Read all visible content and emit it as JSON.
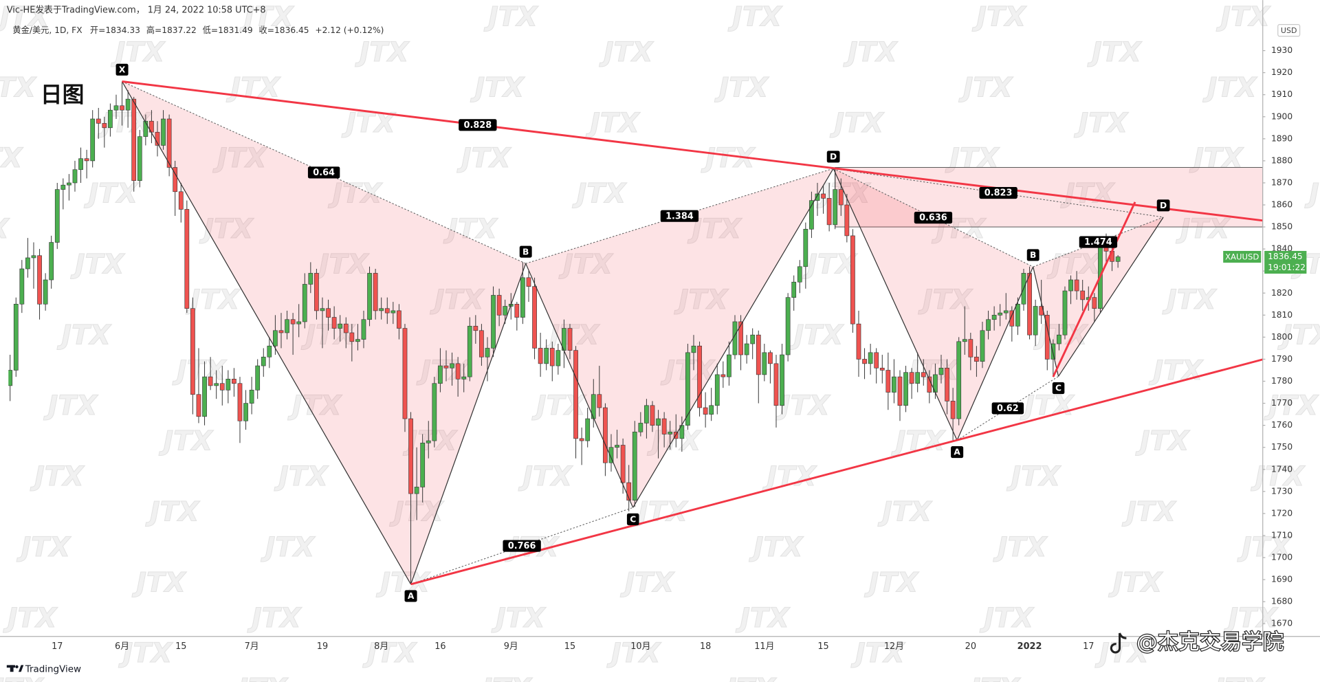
{
  "header": {
    "author_line": "Vic-HE发表于TradingView.com， 1月 24, 2022 10:58 UTC+8",
    "symbol": "黄金/美元, 1D, FX",
    "ohlc_labels": [
      "开=",
      "高=",
      "低=",
      "收="
    ],
    "change": "+2.12 (+0.12%)"
  },
  "chart_data": {
    "type": "candlestick",
    "title": "日图",
    "currency": "USD",
    "watermark": "JTX",
    "up_color": "#4caf50",
    "down_color": "#ef5350",
    "line_color": "#f23645",
    "pattern_color": "#f23645",
    "last_price": {
      "symbol": "XAUUSD",
      "countdown": "19:01:22",
      "color": "#4caf50"
    },
    "ylim": [
      1664.2,
      1943
    ],
    "yticks": [
      1670,
      1680,
      1690,
      1700,
      1710,
      1720,
      1730,
      1740,
      1750,
      1760,
      1770,
      1780,
      1790,
      1800,
      1810,
      1820,
      1830,
      1840,
      1850,
      1860,
      1870,
      1880,
      1890,
      1900,
      1910,
      1920,
      1930
    ],
    "categories": [
      null,
      null,
      null,
      null,
      null,
      null,
      null,
      null,
      "17",
      null,
      null,
      null,
      null,
      null,
      null,
      null,
      null,
      null,
      null,
      "6月",
      null,
      null,
      null,
      null,
      null,
      null,
      null,
      null,
      null,
      "15",
      null,
      null,
      null,
      null,
      null,
      null,
      null,
      null,
      null,
      null,
      null,
      "7月",
      null,
      null,
      null,
      null,
      null,
      null,
      null,
      null,
      null,
      null,
      null,
      "19",
      null,
      null,
      null,
      null,
      null,
      null,
      null,
      null,
      null,
      "8月",
      null,
      null,
      null,
      null,
      null,
      null,
      null,
      null,
      null,
      "16",
      null,
      null,
      null,
      null,
      null,
      null,
      null,
      null,
      null,
      null,
      null,
      "9月",
      null,
      null,
      null,
      null,
      null,
      null,
      null,
      null,
      null,
      "15",
      null,
      null,
      null,
      null,
      null,
      null,
      null,
      null,
      null,
      null,
      null,
      "10月",
      null,
      null,
      null,
      null,
      null,
      null,
      null,
      null,
      null,
      null,
      "18",
      null,
      null,
      null,
      null,
      null,
      null,
      null,
      null,
      null,
      "11月",
      null,
      null,
      null,
      null,
      null,
      null,
      null,
      null,
      null,
      "15",
      null,
      null,
      null,
      null,
      null,
      null,
      null,
      null,
      null,
      null,
      null,
      "12月",
      null,
      null,
      null,
      null,
      null,
      null,
      null,
      null,
      null,
      null,
      null,
      null,
      "20",
      null,
      null,
      null,
      null,
      null,
      null,
      null,
      null,
      null,
      "2022",
      null,
      null,
      null,
      null,
      null,
      null,
      null,
      null,
      null,
      "17",
      null,
      null,
      null,
      null,
      null
    ],
    "candles": [
      [
        1778,
        1792,
        1771,
        1785
      ],
      [
        1785,
        1818,
        1782,
        1815
      ],
      [
        1815,
        1835,
        1811,
        1831
      ],
      [
        1831,
        1845,
        1827,
        1836
      ],
      [
        1836,
        1843,
        1822,
        1837
      ],
      [
        1837,
        1840,
        1808,
        1815
      ],
      [
        1815,
        1829,
        1812,
        1826
      ],
      [
        1826,
        1846,
        1822,
        1843
      ],
      [
        1843,
        1870,
        1840,
        1867
      ],
      [
        1867,
        1872,
        1858,
        1869
      ],
      [
        1869,
        1874,
        1862,
        1870
      ],
      [
        1870,
        1880,
        1866,
        1876
      ],
      [
        1876,
        1886,
        1870,
        1881
      ],
      [
        1881,
        1885,
        1872,
        1880
      ],
      [
        1880,
        1903,
        1877,
        1899
      ],
      [
        1899,
        1904,
        1890,
        1897
      ],
      [
        1897,
        1900,
        1886,
        1895
      ],
      [
        1895,
        1906,
        1891,
        1903
      ],
      [
        1903,
        1910,
        1899,
        1905
      ],
      [
        1905,
        1916,
        1896,
        1903
      ],
      [
        1903,
        1912,
        1895,
        1908
      ],
      [
        1908,
        1909,
        1866,
        1871
      ],
      [
        1871,
        1894,
        1868,
        1891
      ],
      [
        1891,
        1901,
        1887,
        1898
      ],
      [
        1898,
        1903,
        1888,
        1893
      ],
      [
        1893,
        1898,
        1882,
        1887
      ],
      [
        1887,
        1903,
        1885,
        1899
      ],
      [
        1899,
        1901,
        1873,
        1877
      ],
      [
        1877,
        1880,
        1855,
        1866
      ],
      [
        1866,
        1870,
        1852,
        1858
      ],
      [
        1858,
        1862,
        1811,
        1813
      ],
      [
        1813,
        1818,
        1765,
        1774
      ],
      [
        1774,
        1795,
        1761,
        1764
      ],
      [
        1764,
        1789,
        1760,
        1782
      ],
      [
        1782,
        1791,
        1776,
        1778
      ],
      [
        1778,
        1785,
        1772,
        1779
      ],
      [
        1779,
        1787,
        1769,
        1776
      ],
      [
        1776,
        1785,
        1770,
        1781
      ],
      [
        1781,
        1786,
        1773,
        1779
      ],
      [
        1779,
        1782,
        1752,
        1762
      ],
      [
        1762,
        1776,
        1758,
        1770
      ],
      [
        1770,
        1782,
        1765,
        1776
      ],
      [
        1776,
        1790,
        1772,
        1787
      ],
      [
        1787,
        1795,
        1782,
        1791
      ],
      [
        1791,
        1800,
        1786,
        1796
      ],
      [
        1796,
        1810,
        1792,
        1803
      ],
      [
        1803,
        1811,
        1795,
        1802
      ],
      [
        1802,
        1812,
        1799,
        1808
      ],
      [
        1808,
        1811,
        1792,
        1806
      ],
      [
        1806,
        1815,
        1800,
        1807
      ],
      [
        1807,
        1829,
        1804,
        1824
      ],
      [
        1824,
        1834,
        1820,
        1829
      ],
      [
        1829,
        1831,
        1808,
        1812
      ],
      [
        1812,
        1818,
        1795,
        1813
      ],
      [
        1813,
        1817,
        1803,
        1809
      ],
      [
        1809,
        1814,
        1799,
        1804
      ],
      [
        1804,
        1810,
        1798,
        1806
      ],
      [
        1806,
        1809,
        1795,
        1802
      ],
      [
        1802,
        1806,
        1789,
        1798
      ],
      [
        1798,
        1806,
        1794,
        1799
      ],
      [
        1799,
        1812,
        1795,
        1808
      ],
      [
        1808,
        1832,
        1805,
        1829
      ],
      [
        1829,
        1831,
        1808,
        1812
      ],
      [
        1812,
        1818,
        1808,
        1813
      ],
      [
        1813,
        1818,
        1806,
        1811
      ],
      [
        1811,
        1816,
        1806,
        1812
      ],
      [
        1812,
        1815,
        1799,
        1804
      ],
      [
        1804,
        1806,
        1757,
        1763
      ],
      [
        1763,
        1766,
        1688,
        1729
      ],
      [
        1729,
        1750,
        1717,
        1732
      ],
      [
        1732,
        1756,
        1725,
        1752
      ],
      [
        1752,
        1762,
        1745,
        1753
      ],
      [
        1753,
        1782,
        1750,
        1779
      ],
      [
        1779,
        1795,
        1775,
        1787
      ],
      [
        1787,
        1794,
        1780,
        1786
      ],
      [
        1786,
        1793,
        1778,
        1788
      ],
      [
        1788,
        1791,
        1773,
        1781
      ],
      [
        1781,
        1788,
        1775,
        1782
      ],
      [
        1782,
        1809,
        1780,
        1805
      ],
      [
        1805,
        1810,
        1797,
        1803
      ],
      [
        1803,
        1806,
        1787,
        1791
      ],
      [
        1791,
        1800,
        1780,
        1795
      ],
      [
        1795,
        1823,
        1791,
        1819
      ],
      [
        1819,
        1822,
        1805,
        1810
      ],
      [
        1810,
        1817,
        1806,
        1814
      ],
      [
        1814,
        1820,
        1808,
        1815
      ],
      [
        1815,
        1816,
        1803,
        1809
      ],
      [
        1809,
        1834,
        1806,
        1827
      ],
      [
        1827,
        1830,
        1816,
        1823
      ],
      [
        1823,
        1827,
        1790,
        1795
      ],
      [
        1795,
        1802,
        1782,
        1788
      ],
      [
        1788,
        1799,
        1785,
        1795
      ],
      [
        1795,
        1798,
        1780,
        1787
      ],
      [
        1787,
        1797,
        1783,
        1794
      ],
      [
        1794,
        1808,
        1786,
        1804
      ],
      [
        1804,
        1806,
        1790,
        1794
      ],
      [
        1794,
        1796,
        1745,
        1754
      ],
      [
        1754,
        1759,
        1742,
        1753
      ],
      [
        1753,
        1768,
        1750,
        1763
      ],
      [
        1763,
        1781,
        1759,
        1774
      ],
      [
        1774,
        1787,
        1764,
        1768
      ],
      [
        1768,
        1770,
        1737,
        1743
      ],
      [
        1743,
        1756,
        1739,
        1750
      ],
      [
        1750,
        1758,
        1745,
        1751
      ],
      [
        1751,
        1754,
        1729,
        1734
      ],
      [
        1734,
        1742,
        1721,
        1726
      ],
      [
        1726,
        1762,
        1723,
        1757
      ],
      [
        1757,
        1766,
        1755,
        1761
      ],
      [
        1761,
        1772,
        1754,
        1769
      ],
      [
        1769,
        1771,
        1757,
        1760
      ],
      [
        1760,
        1767,
        1745,
        1763
      ],
      [
        1763,
        1766,
        1750,
        1756
      ],
      [
        1756,
        1762,
        1749,
        1757
      ],
      [
        1757,
        1765,
        1750,
        1754
      ],
      [
        1754,
        1764,
        1748,
        1760
      ],
      [
        1760,
        1797,
        1758,
        1793
      ],
      [
        1793,
        1801,
        1785,
        1796
      ],
      [
        1796,
        1798,
        1764,
        1768
      ],
      [
        1768,
        1775,
        1759,
        1765
      ],
      [
        1765,
        1777,
        1762,
        1769
      ],
      [
        1769,
        1788,
        1765,
        1783
      ],
      [
        1783,
        1789,
        1777,
        1782
      ],
      [
        1782,
        1798,
        1778,
        1792
      ],
      [
        1792,
        1810,
        1790,
        1807
      ],
      [
        1807,
        1810,
        1785,
        1792
      ],
      [
        1792,
        1801,
        1788,
        1797
      ],
      [
        1797,
        1804,
        1790,
        1801
      ],
      [
        1801,
        1803,
        1770,
        1783
      ],
      [
        1783,
        1797,
        1780,
        1793
      ],
      [
        1793,
        1794,
        1779,
        1788
      ],
      [
        1788,
        1792,
        1759,
        1769
      ],
      [
        1769,
        1797,
        1765,
        1792
      ],
      [
        1792,
        1820,
        1789,
        1818
      ],
      [
        1818,
        1828,
        1812,
        1825
      ],
      [
        1825,
        1835,
        1820,
        1832
      ],
      [
        1832,
        1852,
        1822,
        1849
      ],
      [
        1849,
        1866,
        1845,
        1862
      ],
      [
        1862,
        1870,
        1855,
        1865
      ],
      [
        1865,
        1869,
        1856,
        1863
      ],
      [
        1863,
        1870,
        1848,
        1851
      ],
      [
        1851,
        1877,
        1849,
        1867
      ],
      [
        1867,
        1872,
        1855,
        1860
      ],
      [
        1860,
        1865,
        1843,
        1846
      ],
      [
        1846,
        1849,
        1802,
        1806
      ],
      [
        1806,
        1812,
        1782,
        1790
      ],
      [
        1790,
        1795,
        1781,
        1788
      ],
      [
        1788,
        1797,
        1783,
        1793
      ],
      [
        1793,
        1795,
        1779,
        1786
      ],
      [
        1786,
        1792,
        1779,
        1785
      ],
      [
        1785,
        1793,
        1767,
        1775
      ],
      [
        1775,
        1790,
        1770,
        1782
      ],
      [
        1782,
        1785,
        1762,
        1769
      ],
      [
        1769,
        1787,
        1766,
        1784
      ],
      [
        1784,
        1786,
        1772,
        1779
      ],
      [
        1779,
        1793,
        1775,
        1784
      ],
      [
        1784,
        1790,
        1778,
        1782
      ],
      [
        1782,
        1785,
        1770,
        1775
      ],
      [
        1775,
        1788,
        1772,
        1783
      ],
      [
        1783,
        1792,
        1779,
        1786
      ],
      [
        1786,
        1790,
        1765,
        1771
      ],
      [
        1771,
        1777,
        1753,
        1763
      ],
      [
        1763,
        1800,
        1760,
        1798
      ],
      [
        1798,
        1814,
        1792,
        1799
      ],
      [
        1799,
        1802,
        1785,
        1791
      ],
      [
        1791,
        1796,
        1782,
        1789
      ],
      [
        1789,
        1807,
        1786,
        1803
      ],
      [
        1803,
        1812,
        1799,
        1808
      ],
      [
        1808,
        1814,
        1803,
        1810
      ],
      [
        1810,
        1815,
        1805,
        1811
      ],
      [
        1811,
        1820,
        1808,
        1812
      ],
      [
        1812,
        1814,
        1798,
        1805
      ],
      [
        1805,
        1818,
        1801,
        1815
      ],
      [
        1815,
        1831,
        1812,
        1829
      ],
      [
        1829,
        1832,
        1799,
        1801
      ],
      [
        1801,
        1817,
        1796,
        1814
      ],
      [
        1814,
        1826,
        1806,
        1810
      ],
      [
        1810,
        1812,
        1785,
        1790
      ],
      [
        1790,
        1799,
        1782,
        1797
      ],
      [
        1797,
        1806,
        1794,
        1801
      ],
      [
        1801,
        1823,
        1799,
        1821
      ],
      [
        1821,
        1828,
        1815,
        1826
      ],
      [
        1826,
        1830,
        1817,
        1821
      ],
      [
        1821,
        1826,
        1812,
        1817
      ],
      [
        1817,
        1823,
        1812,
        1818
      ],
      [
        1818,
        1820,
        1807,
        1813
      ],
      [
        1813,
        1845,
        1811,
        1841
      ],
      [
        1841,
        1847,
        1834,
        1839
      ],
      [
        1839,
        1843,
        1830,
        1834.33
      ],
      [
        1834.33,
        1837.22,
        1831.49,
        1836.45
      ]
    ],
    "zone": {
      "from": 140,
      "top": 1877,
      "bottom": 1850
    },
    "trendlines": [
      {
        "points": [
          [
            19,
            1916
          ],
          [
            212.6,
            1852.9
          ]
        ]
      },
      {
        "points": [
          [
            68,
            1687.9
          ],
          [
            212.6,
            1789.9
          ]
        ]
      },
      {
        "points": [
          [
            177,
            1782
          ],
          [
            190.9,
            1861.3
          ]
        ]
      }
    ],
    "patterns": [
      {
        "points": [
          {
            "label": "X",
            "x": 19,
            "y": 1916
          },
          {
            "label": "A",
            "x": 68,
            "y": 1687.9
          },
          {
            "label": "B",
            "x": 87.5,
            "y": 1833.4
          },
          {
            "label": "C",
            "x": 105.7,
            "y": 1722.7
          },
          {
            "label": "D",
            "x": 139.7,
            "y": 1876.5
          }
        ],
        "ratios": {
          "XB": 0.64,
          "BD": 1.384,
          "AC": 0.766,
          "XD": 0.828
        }
      },
      {
        "points": [
          {
            "label": null,
            "x": 139.7,
            "y": 1876.5
          },
          {
            "label": "A",
            "x": 160.7,
            "y": 1753.2
          },
          {
            "label": "B",
            "x": 173.6,
            "y": 1831.9
          },
          {
            "label": "C",
            "x": 177.9,
            "y": 1782.2
          },
          {
            "label": "D",
            "x": 195.7,
            "y": 1854.4
          }
        ],
        "ratios": {
          "XB": 0.636,
          "BD": 1.474,
          "AC": 0.62,
          "XD": 0.823
        }
      }
    ]
  },
  "footer": {
    "logo": "TradingView",
    "credit": "@杰克交易学院"
  }
}
